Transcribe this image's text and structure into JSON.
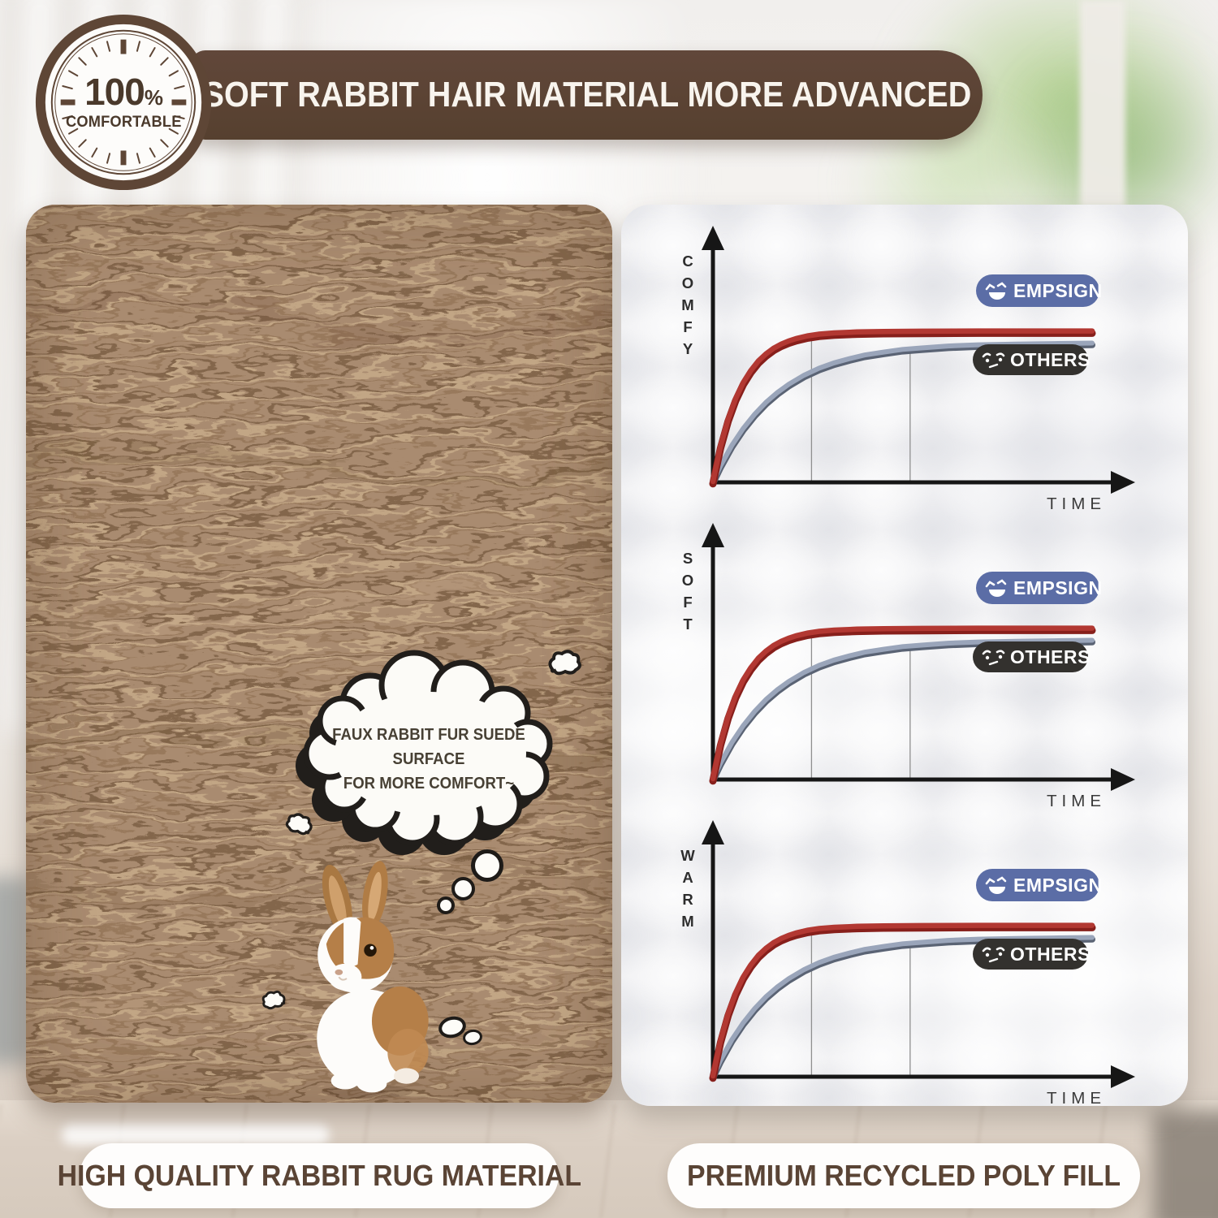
{
  "badge": {
    "value": "100",
    "percent": "%",
    "label": "COMFORTABLE"
  },
  "banner": {
    "title": "SOFT RABBIT HAIR MATERIAL MORE ADVANCED"
  },
  "cloud": {
    "line1": "FAUX RABBIT FUR SUEDE SURFACE",
    "line2": "FOR MORE COMFORT~"
  },
  "captions": {
    "left": "HIGH QUALITY RABBIT RUG MATERIAL",
    "right": "PREMIUM RECYCLED POLY FILL"
  },
  "colors": {
    "brown": "#5b4334",
    "banner_text": "#f8f4ee",
    "pill_text": "#5a4435",
    "brand_blue": "#5b6da6",
    "competitor_dark": "#33312e",
    "line_red": "#b23832",
    "line_red_dark": "#871f1b",
    "line_blue": "#9aa5ba",
    "line_blue_dark": "#5a6374",
    "axis": "#161616",
    "guide": "#8f8f8f",
    "fur_base": "#a98b6f",
    "fur_highlight": "#c3a585",
    "fur_shadow": "#73573e"
  },
  "chart_data": [
    {
      "type": "line",
      "ylabel": "COMFY",
      "xlabel": "TIME",
      "x_range": [
        0,
        1
      ],
      "y_range": [
        0,
        1
      ],
      "grid": false,
      "legend_position": "right",
      "guides": [
        {
          "x": 0.26,
          "y": 0.602
        },
        {
          "x": 0.52,
          "y": 0.546
        }
      ],
      "series": [
        {
          "name": "EMPSIGN",
          "color": "#b23832",
          "points": [
            [
              0,
              0
            ],
            [
              0.02,
              0.145
            ],
            [
              0.04,
              0.256
            ],
            [
              0.06,
              0.341
            ],
            [
              0.08,
              0.407
            ],
            [
              0.1,
              0.456
            ],
            [
              0.12,
              0.495
            ],
            [
              0.14,
              0.524
            ],
            [
              0.16,
              0.547
            ],
            [
              0.18,
              0.564
            ],
            [
              0.2,
              0.577
            ],
            [
              0.22,
              0.587
            ],
            [
              0.25,
              0.598
            ],
            [
              0.28,
              0.605
            ],
            [
              0.32,
              0.61
            ],
            [
              0.38,
              0.614
            ],
            [
              0.45,
              0.616
            ],
            [
              0.55,
              0.617
            ],
            [
              0.7,
              0.618
            ],
            [
              0.85,
              0.618
            ],
            [
              1,
              0.618
            ]
          ]
        },
        {
          "name": "OTHERS",
          "color": "#9aa5ba",
          "points": [
            [
              0,
              0
            ],
            [
              0.02,
              0.065
            ],
            [
              0.05,
              0.149
            ],
            [
              0.08,
              0.219
            ],
            [
              0.11,
              0.277
            ],
            [
              0.14,
              0.326
            ],
            [
              0.17,
              0.366
            ],
            [
              0.2,
              0.4
            ],
            [
              0.24,
              0.437
            ],
            [
              0.28,
              0.466
            ],
            [
              0.32,
              0.488
            ],
            [
              0.36,
              0.505
            ],
            [
              0.4,
              0.52
            ],
            [
              0.45,
              0.532
            ],
            [
              0.5,
              0.543
            ],
            [
              0.55,
              0.549
            ],
            [
              0.62,
              0.557
            ],
            [
              0.7,
              0.562
            ],
            [
              0.8,
              0.565
            ],
            [
              0.9,
              0.567
            ],
            [
              1,
              0.569
            ]
          ]
        }
      ]
    },
    {
      "type": "line",
      "ylabel": "SOFT",
      "xlabel": "TIME",
      "x_range": [
        0,
        1
      ],
      "y_range": [
        0,
        1
      ],
      "grid": false,
      "legend_position": "right",
      "guides": [
        {
          "x": 0.26,
          "y": 0.602
        },
        {
          "x": 0.52,
          "y": 0.546
        }
      ],
      "series": [
        {
          "name": "EMPSIGN",
          "color": "#b23832",
          "points": [
            [
              0,
              0
            ],
            [
              0.02,
              0.145
            ],
            [
              0.04,
              0.256
            ],
            [
              0.06,
              0.341
            ],
            [
              0.08,
              0.407
            ],
            [
              0.1,
              0.456
            ],
            [
              0.12,
              0.495
            ],
            [
              0.14,
              0.524
            ],
            [
              0.16,
              0.547
            ],
            [
              0.18,
              0.564
            ],
            [
              0.2,
              0.577
            ],
            [
              0.22,
              0.587
            ],
            [
              0.25,
              0.598
            ],
            [
              0.28,
              0.605
            ],
            [
              0.32,
              0.61
            ],
            [
              0.38,
              0.614
            ],
            [
              0.45,
              0.616
            ],
            [
              0.55,
              0.617
            ],
            [
              0.7,
              0.618
            ],
            [
              0.85,
              0.618
            ],
            [
              1,
              0.618
            ]
          ]
        },
        {
          "name": "OTHERS",
          "color": "#9aa5ba",
          "points": [
            [
              0,
              0
            ],
            [
              0.02,
              0.065
            ],
            [
              0.05,
              0.149
            ],
            [
              0.08,
              0.219
            ],
            [
              0.11,
              0.277
            ],
            [
              0.14,
              0.326
            ],
            [
              0.17,
              0.366
            ],
            [
              0.2,
              0.4
            ],
            [
              0.24,
              0.437
            ],
            [
              0.28,
              0.466
            ],
            [
              0.32,
              0.488
            ],
            [
              0.36,
              0.505
            ],
            [
              0.4,
              0.52
            ],
            [
              0.45,
              0.532
            ],
            [
              0.5,
              0.543
            ],
            [
              0.55,
              0.549
            ],
            [
              0.62,
              0.557
            ],
            [
              0.7,
              0.562
            ],
            [
              0.8,
              0.565
            ],
            [
              0.9,
              0.567
            ],
            [
              1,
              0.569
            ]
          ]
        }
      ]
    },
    {
      "type": "line",
      "ylabel": "WARM",
      "xlabel": "TIME",
      "x_range": [
        0,
        1
      ],
      "y_range": [
        0,
        1
      ],
      "grid": false,
      "legend_position": "right",
      "guides": [
        {
          "x": 0.26,
          "y": 0.602
        },
        {
          "x": 0.52,
          "y": 0.546
        }
      ],
      "series": [
        {
          "name": "EMPSIGN",
          "color": "#b23832",
          "points": [
            [
              0,
              0
            ],
            [
              0.02,
              0.145
            ],
            [
              0.04,
              0.256
            ],
            [
              0.06,
              0.341
            ],
            [
              0.08,
              0.407
            ],
            [
              0.1,
              0.456
            ],
            [
              0.12,
              0.495
            ],
            [
              0.14,
              0.524
            ],
            [
              0.16,
              0.547
            ],
            [
              0.18,
              0.564
            ],
            [
              0.2,
              0.577
            ],
            [
              0.22,
              0.587
            ],
            [
              0.25,
              0.598
            ],
            [
              0.28,
              0.605
            ],
            [
              0.32,
              0.61
            ],
            [
              0.38,
              0.614
            ],
            [
              0.45,
              0.616
            ],
            [
              0.55,
              0.617
            ],
            [
              0.7,
              0.618
            ],
            [
              0.85,
              0.618
            ],
            [
              1,
              0.618
            ]
          ]
        },
        {
          "name": "OTHERS",
          "color": "#9aa5ba",
          "points": [
            [
              0,
              0
            ],
            [
              0.02,
              0.065
            ],
            [
              0.05,
              0.149
            ],
            [
              0.08,
              0.219
            ],
            [
              0.11,
              0.277
            ],
            [
              0.14,
              0.326
            ],
            [
              0.17,
              0.366
            ],
            [
              0.2,
              0.4
            ],
            [
              0.24,
              0.437
            ],
            [
              0.28,
              0.466
            ],
            [
              0.32,
              0.488
            ],
            [
              0.36,
              0.505
            ],
            [
              0.4,
              0.52
            ],
            [
              0.45,
              0.532
            ],
            [
              0.5,
              0.543
            ],
            [
              0.55,
              0.549
            ],
            [
              0.62,
              0.557
            ],
            [
              0.7,
              0.562
            ],
            [
              0.8,
              0.565
            ],
            [
              0.9,
              0.567
            ],
            [
              1,
              0.569
            ]
          ]
        }
      ]
    }
  ]
}
